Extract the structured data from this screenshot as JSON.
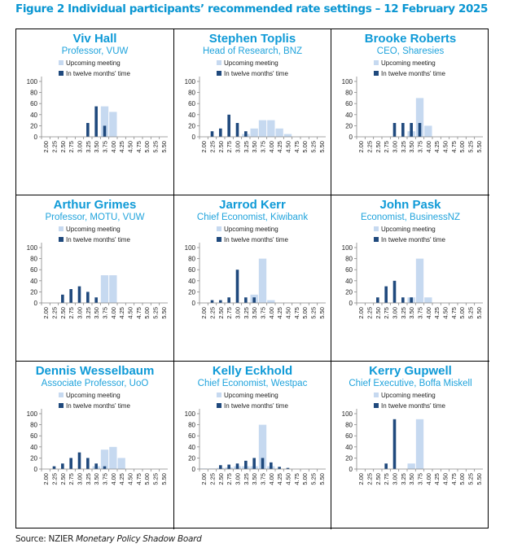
{
  "figure_title": "Figure 2 Individual participants’ recommended rate settings – 12 February 2025",
  "source": {
    "prefix": "Source: NZIER ",
    "publication": "Monetary Policy Shadow Board"
  },
  "colors": {
    "upcoming": "#c6d9f0",
    "twelve_months": "#1f497d",
    "title": "#0a96d2"
  },
  "chart_data": [
    {
      "type": "bar",
      "title": "Viv Hall",
      "subtitle": "Professor, VUW",
      "categories": [
        "2.00",
        "2.25",
        "2.50",
        "2.75",
        "3.00",
        "3.25",
        "3.50",
        "3.75",
        "4.00",
        "4.25",
        "4.50",
        "4.75",
        "5.00",
        "5.25",
        "5.50"
      ],
      "ylim": [
        0,
        100
      ],
      "yticks": [
        0,
        20,
        40,
        60,
        80,
        100
      ],
      "legend": "top",
      "grid": false,
      "series": [
        {
          "name": "Upcoming meeting",
          "values": [
            0,
            0,
            0,
            0,
            0,
            0,
            0,
            55,
            45,
            0,
            0,
            0,
            0,
            0,
            0
          ]
        },
        {
          "name": "In twelve months' time",
          "values": [
            0,
            0,
            0,
            0,
            0,
            25,
            55,
            20,
            0,
            0,
            0,
            0,
            0,
            0,
            0
          ]
        }
      ]
    },
    {
      "type": "bar",
      "title": "Stephen Toplis",
      "subtitle": "Head of Research, BNZ",
      "categories": [
        "2.00",
        "2.25",
        "2.50",
        "2.75",
        "3.00",
        "3.25",
        "3.50",
        "3.75",
        "4.00",
        "4.25",
        "4.50",
        "4.75",
        "5.00",
        "5.25",
        "5.50"
      ],
      "ylim": [
        0,
        100
      ],
      "yticks": [
        0,
        20,
        40,
        60,
        80,
        100
      ],
      "legend": "top",
      "grid": false,
      "series": [
        {
          "name": "Upcoming meeting",
          "values": [
            0,
            0,
            0,
            0,
            0,
            5,
            15,
            30,
            30,
            15,
            5,
            0,
            0,
            0,
            0
          ]
        },
        {
          "name": "In twelve months' time",
          "values": [
            0,
            10,
            15,
            40,
            25,
            10,
            0,
            0,
            0,
            0,
            0,
            0,
            0,
            0,
            0
          ]
        }
      ]
    },
    {
      "type": "bar",
      "title": "Brooke Roberts",
      "subtitle": "CEO, Sharesies",
      "categories": [
        "2.00",
        "2.25",
        "2.50",
        "2.75",
        "3.00",
        "3.25",
        "3.50",
        "3.75",
        "4.00",
        "4.25",
        "4.50",
        "4.75",
        "5.00",
        "5.25",
        "5.50"
      ],
      "ylim": [
        0,
        100
      ],
      "yticks": [
        0,
        20,
        40,
        60,
        80,
        100
      ],
      "legend": "top",
      "grid": false,
      "series": [
        {
          "name": "Upcoming meeting",
          "values": [
            0,
            0,
            0,
            0,
            0,
            0,
            10,
            70,
            20,
            0,
            0,
            0,
            0,
            0,
            0
          ]
        },
        {
          "name": "In twelve months' time",
          "values": [
            0,
            0,
            0,
            0,
            25,
            25,
            25,
            25,
            0,
            0,
            0,
            0,
            0,
            0,
            0
          ]
        }
      ]
    },
    {
      "type": "bar",
      "title": "Arthur Grimes",
      "subtitle": "Professor, MOTU, VUW",
      "categories": [
        "2.00",
        "2.25",
        "2.50",
        "2.75",
        "3.00",
        "3.25",
        "3.50",
        "3.75",
        "4.00",
        "4.25",
        "4.50",
        "4.75",
        "5.00",
        "5.25",
        "5.50"
      ],
      "ylim": [
        0,
        100
      ],
      "yticks": [
        0,
        20,
        40,
        60,
        80,
        100
      ],
      "legend": "top",
      "grid": false,
      "series": [
        {
          "name": "Upcoming meeting",
          "values": [
            0,
            0,
            0,
            0,
            0,
            0,
            0,
            50,
            50,
            0,
            0,
            0,
            0,
            0,
            0
          ]
        },
        {
          "name": "In twelve months' time",
          "values": [
            0,
            0,
            15,
            25,
            30,
            20,
            10,
            0,
            0,
            0,
            0,
            0,
            0,
            0,
            0
          ]
        }
      ]
    },
    {
      "type": "bar",
      "title": "Jarrod Kerr",
      "subtitle": "Chief Economist, Kiwibank",
      "categories": [
        "2.00",
        "2.25",
        "2.50",
        "2.75",
        "3.00",
        "3.25",
        "3.50",
        "3.75",
        "4.00",
        "4.25",
        "4.50",
        "4.75",
        "5.00",
        "5.25",
        "5.50"
      ],
      "ylim": [
        0,
        100
      ],
      "yticks": [
        0,
        20,
        40,
        60,
        80,
        100
      ],
      "legend": "top",
      "grid": false,
      "series": [
        {
          "name": "Upcoming meeting",
          "values": [
            0,
            0,
            0,
            0,
            0,
            0,
            15,
            80,
            5,
            0,
            0,
            0,
            0,
            0,
            0
          ]
        },
        {
          "name": "In twelve months' time",
          "values": [
            0,
            5,
            5,
            10,
            60,
            10,
            10,
            0,
            0,
            0,
            0,
            0,
            0,
            0,
            0
          ]
        }
      ]
    },
    {
      "type": "bar",
      "title": "John Pask",
      "subtitle": "Economist, BusinessNZ",
      "categories": [
        "2.00",
        "2.25",
        "2.50",
        "2.75",
        "3.00",
        "3.25",
        "3.50",
        "3.75",
        "4.00",
        "4.25",
        "4.50",
        "4.75",
        "5.00",
        "5.25",
        "5.50"
      ],
      "ylim": [
        0,
        100
      ],
      "yticks": [
        0,
        20,
        40,
        60,
        80,
        100
      ],
      "legend": "top",
      "grid": false,
      "series": [
        {
          "name": "Upcoming meeting",
          "values": [
            0,
            0,
            0,
            0,
            0,
            0,
            10,
            80,
            10,
            0,
            0,
            0,
            0,
            0,
            0
          ]
        },
        {
          "name": "In twelve months' time",
          "values": [
            0,
            0,
            10,
            30,
            40,
            10,
            10,
            0,
            0,
            0,
            0,
            0,
            0,
            0,
            0
          ]
        }
      ]
    },
    {
      "type": "bar",
      "title": "Dennis Wesselbaum",
      "subtitle": "Associate Professor, UoO",
      "categories": [
        "2.00",
        "2.25",
        "2.50",
        "2.75",
        "3.00",
        "3.25",
        "3.50",
        "3.75",
        "4.00",
        "4.25",
        "4.50",
        "4.75",
        "5.00",
        "5.25",
        "5.50"
      ],
      "ylim": [
        0,
        100
      ],
      "yticks": [
        0,
        20,
        40,
        60,
        80,
        100
      ],
      "legend": "top",
      "grid": false,
      "series": [
        {
          "name": "Upcoming meeting",
          "values": [
            0,
            0,
            0,
            0,
            0,
            0,
            5,
            35,
            40,
            20,
            0,
            0,
            0,
            0,
            0
          ]
        },
        {
          "name": "In twelve months' time",
          "values": [
            0,
            5,
            10,
            20,
            30,
            20,
            10,
            5,
            0,
            0,
            0,
            0,
            0,
            0,
            0
          ]
        }
      ]
    },
    {
      "type": "bar",
      "title": "Kelly Eckhold",
      "subtitle": "Chief Economist, Westpac",
      "categories": [
        "2.00",
        "2.25",
        "2.50",
        "2.75",
        "3.00",
        "3.25",
        "3.50",
        "3.75",
        "4.00",
        "4.25",
        "4.50",
        "4.75",
        "5.00",
        "5.25",
        "5.50"
      ],
      "ylim": [
        0,
        100
      ],
      "yticks": [
        0,
        20,
        40,
        60,
        80,
        100
      ],
      "legend": "top",
      "grid": false,
      "series": [
        {
          "name": "Upcoming meeting",
          "values": [
            1,
            1,
            2,
            3,
            5,
            5,
            5,
            80,
            5,
            0,
            0,
            0,
            0,
            0,
            0
          ]
        },
        {
          "name": "In twelve months' time",
          "values": [
            0,
            0,
            7,
            8,
            10,
            15,
            20,
            20,
            12,
            4,
            2,
            0,
            0,
            0,
            0
          ]
        }
      ]
    },
    {
      "type": "bar",
      "title": "Kerry Gupwell",
      "subtitle": "Chief Executive, Boffa Miskell",
      "categories": [
        "2.00",
        "2.25",
        "2.50",
        "2.75",
        "3.00",
        "3.25",
        "3.50",
        "3.75",
        "4.00",
        "4.25",
        "4.50",
        "4.75",
        "5.00",
        "5.25",
        "5.50"
      ],
      "ylim": [
        0,
        100
      ],
      "yticks": [
        0,
        20,
        40,
        60,
        80,
        100
      ],
      "legend": "top",
      "grid": false,
      "series": [
        {
          "name": "Upcoming meeting",
          "values": [
            0,
            0,
            0,
            0,
            0,
            0,
            10,
            90,
            0,
            0,
            0,
            0,
            0,
            0,
            0
          ]
        },
        {
          "name": "In twelve months' time",
          "values": [
            0,
            0,
            0,
            10,
            90,
            0,
            0,
            0,
            0,
            0,
            0,
            0,
            0,
            0,
            0
          ]
        }
      ]
    }
  ]
}
